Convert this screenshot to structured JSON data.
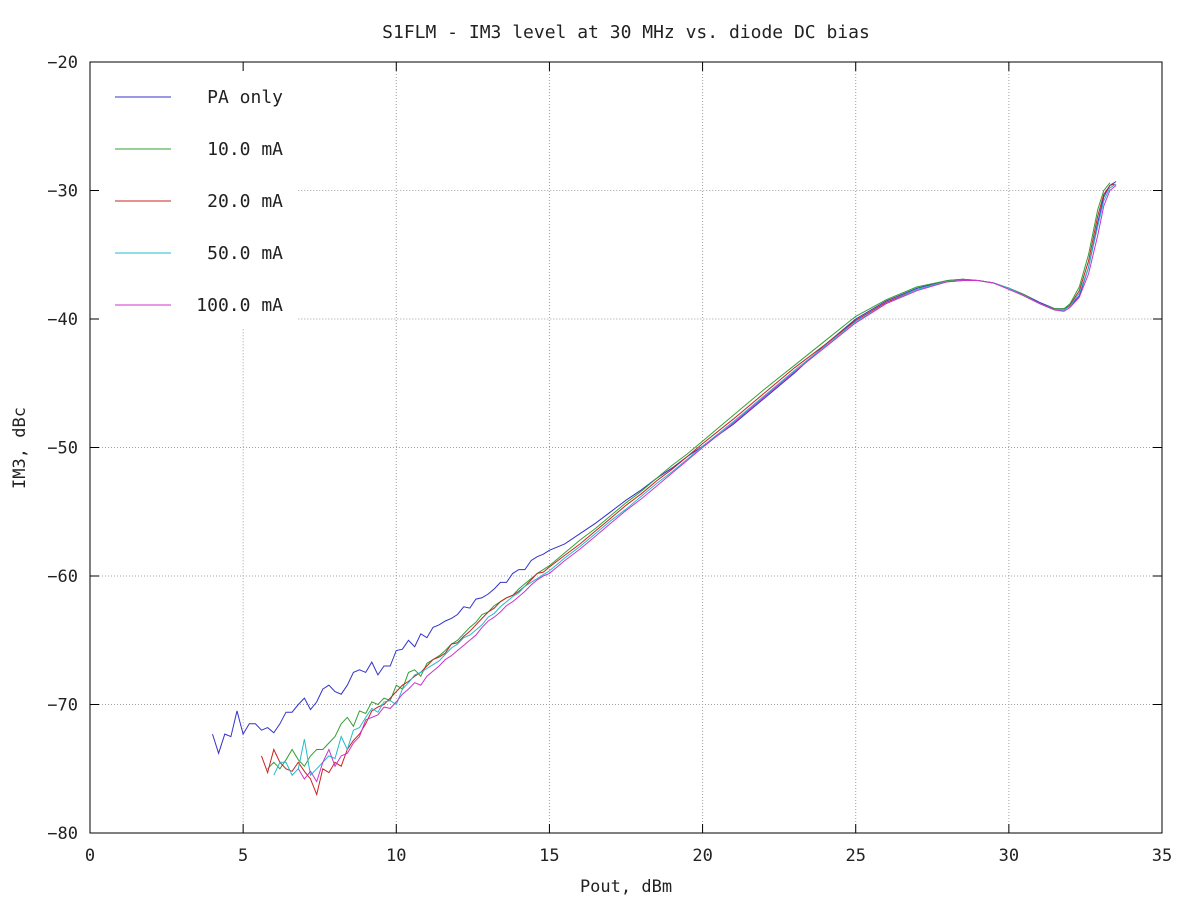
{
  "chart_data": {
    "type": "line",
    "title": "S1FLM - IM3 level at 30 MHz vs. diode DC bias",
    "xlabel": "Pout, dBm",
    "ylabel": "IM3, dBc",
    "xlim": [
      0,
      35
    ],
    "ylim": [
      -80,
      -20
    ],
    "x_ticks": [
      0,
      5,
      10,
      15,
      20,
      25,
      30,
      35
    ],
    "y_ticks": [
      -80,
      -70,
      -60,
      -50,
      -40,
      -30,
      -20
    ],
    "x_tick_labels": [
      "0",
      "5",
      "10",
      "15",
      "20",
      "25",
      "30",
      "35"
    ],
    "y_tick_labels": [
      "−80",
      "−70",
      "−60",
      "−50",
      "−40",
      "−30",
      "−20"
    ],
    "grid": true,
    "legend_position": "top-left",
    "series": [
      {
        "name": "PA only",
        "color": "#3333cc",
        "x": [
          4.0,
          4.2,
          4.4,
          4.6,
          4.8,
          5.0,
          5.2,
          5.4,
          5.6,
          5.8,
          6.0,
          6.2,
          6.4,
          6.6,
          6.8,
          7.0,
          7.2,
          7.4,
          7.6,
          7.8,
          8.0,
          8.2,
          8.4,
          8.6,
          8.8,
          9.0,
          9.2,
          9.4,
          9.6,
          9.8,
          10.0,
          10.2,
          10.4,
          10.6,
          10.8,
          11.0,
          11.2,
          11.4,
          11.6,
          11.8,
          12.0,
          12.2,
          12.4,
          12.6,
          12.8,
          13.0,
          13.2,
          13.4,
          13.6,
          13.8,
          14.0,
          14.2,
          14.4,
          14.6,
          14.8,
          15.0,
          15.5,
          16.0,
          16.5,
          17.0,
          17.5,
          18.0,
          18.5,
          19.0,
          19.5,
          20.0,
          21.0,
          22.0,
          23.0,
          24.0,
          25.0,
          26.0,
          27.0,
          28.0,
          28.5,
          29.0,
          29.5,
          30.0,
          30.5,
          31.0,
          31.5,
          31.8,
          32.0,
          32.3,
          32.6,
          32.9,
          33.1,
          33.3,
          33.5
        ],
        "y": [
          -72.3,
          -73.8,
          -72.3,
          -72.5,
          -70.5,
          -72.3,
          -71.5,
          -71.5,
          -72.0,
          -71.8,
          -72.2,
          -71.5,
          -70.6,
          -70.6,
          -70.0,
          -69.5,
          -70.4,
          -69.8,
          -68.8,
          -68.5,
          -69.0,
          -69.2,
          -68.5,
          -67.5,
          -67.3,
          -67.5,
          -66.7,
          -67.7,
          -67.0,
          -67.0,
          -65.8,
          -65.7,
          -65.0,
          -65.5,
          -64.5,
          -64.8,
          -64.0,
          -63.8,
          -63.5,
          -63.3,
          -63.0,
          -62.4,
          -62.5,
          -61.8,
          -61.7,
          -61.4,
          -61.0,
          -60.5,
          -60.5,
          -59.8,
          -59.5,
          -59.5,
          -58.8,
          -58.5,
          -58.3,
          -58.0,
          -57.5,
          -56.7,
          -55.9,
          -55.0,
          -54.1,
          -53.3,
          -52.4,
          -51.6,
          -50.7,
          -49.9,
          -48.2,
          -46.2,
          -44.2,
          -42.0,
          -40.0,
          -38.6,
          -37.6,
          -37.0,
          -36.9,
          -37.0,
          -37.2,
          -37.6,
          -38.1,
          -38.7,
          -39.2,
          -39.2,
          -39.0,
          -38.2,
          -36.0,
          -32.5,
          -30.5,
          -29.6,
          -29.3
        ]
      },
      {
        "name": "10.0 mA",
        "color": "#33a033",
        "x": [
          5.8,
          6.0,
          6.2,
          6.4,
          6.6,
          6.8,
          7.0,
          7.2,
          7.4,
          7.6,
          7.8,
          8.0,
          8.2,
          8.4,
          8.6,
          8.8,
          9.0,
          9.2,
          9.4,
          9.6,
          9.8,
          10.0,
          10.2,
          10.4,
          10.6,
          10.8,
          11.0,
          11.2,
          11.4,
          11.6,
          11.8,
          12.0,
          12.2,
          12.4,
          12.6,
          12.8,
          13.0,
          13.2,
          13.4,
          13.6,
          13.8,
          14.0,
          14.2,
          14.4,
          14.6,
          14.8,
          15.0,
          15.5,
          16.0,
          16.5,
          17.0,
          17.5,
          18.0,
          18.5,
          19.0,
          19.5,
          20.0,
          21.0,
          22.0,
          23.0,
          24.0,
          25.0,
          26.0,
          27.0,
          28.0,
          28.5,
          29.0,
          29.5,
          30.0,
          30.5,
          31.0,
          31.5,
          31.8,
          32.0,
          32.3,
          32.6,
          32.9,
          33.1,
          33.3
        ],
        "y": [
          -75.0,
          -74.5,
          -75.0,
          -74.3,
          -73.5,
          -74.3,
          -74.8,
          -74.0,
          -73.5,
          -73.5,
          -73.0,
          -72.5,
          -71.5,
          -71.0,
          -71.7,
          -70.5,
          -70.7,
          -69.8,
          -70.0,
          -69.5,
          -69.7,
          -68.5,
          -68.8,
          -67.5,
          -67.3,
          -67.8,
          -66.8,
          -66.5,
          -66.2,
          -65.8,
          -65.3,
          -65.0,
          -64.5,
          -64.0,
          -63.6,
          -63.0,
          -62.8,
          -62.3,
          -62.0,
          -61.7,
          -61.5,
          -61.0,
          -60.6,
          -60.2,
          -59.8,
          -59.5,
          -59.2,
          -58.2,
          -57.2,
          -56.3,
          -55.3,
          -54.3,
          -53.4,
          -52.4,
          -51.4,
          -50.5,
          -49.5,
          -47.5,
          -45.5,
          -43.6,
          -41.7,
          -39.8,
          -38.5,
          -37.5,
          -37.0,
          -36.9,
          -37.0,
          -37.2,
          -37.6,
          -38.1,
          -38.8,
          -39.2,
          -39.2,
          -38.8,
          -37.5,
          -35.0,
          -31.5,
          -30.0,
          -29.4
        ]
      },
      {
        "name": "20.0 mA",
        "color": "#cc2222",
        "x": [
          5.6,
          5.8,
          6.0,
          6.2,
          6.4,
          6.6,
          6.8,
          7.0,
          7.2,
          7.4,
          7.6,
          7.8,
          8.0,
          8.2,
          8.4,
          8.6,
          8.8,
          9.0,
          9.2,
          9.4,
          9.6,
          9.8,
          10.0,
          10.2,
          10.4,
          10.6,
          10.8,
          11.0,
          11.2,
          11.4,
          11.6,
          11.8,
          12.0,
          12.2,
          12.4,
          12.6,
          12.8,
          13.0,
          13.2,
          13.4,
          13.6,
          13.8,
          14.0,
          14.2,
          14.4,
          14.6,
          14.8,
          15.0,
          15.5,
          16.0,
          16.5,
          17.0,
          17.5,
          18.0,
          18.5,
          19.0,
          19.5,
          20.0,
          21.0,
          22.0,
          23.0,
          24.0,
          25.0,
          26.0,
          27.0,
          28.0,
          28.5,
          29.0,
          29.5,
          30.0,
          30.5,
          31.0,
          31.5,
          31.8,
          32.0,
          32.3,
          32.6,
          32.9,
          33.1,
          33.3,
          33.45
        ],
        "y": [
          -74.0,
          -75.3,
          -73.5,
          -74.5,
          -75.0,
          -75.2,
          -74.5,
          -75.2,
          -75.8,
          -77.0,
          -75.0,
          -75.3,
          -74.5,
          -74.8,
          -73.5,
          -72.8,
          -72.3,
          -71.5,
          -70.5,
          -70.2,
          -70.0,
          -69.5,
          -69.0,
          -68.5,
          -68.2,
          -67.8,
          -67.5,
          -67.0,
          -66.5,
          -66.3,
          -66.0,
          -65.3,
          -65.2,
          -64.7,
          -64.3,
          -63.8,
          -63.3,
          -62.8,
          -62.5,
          -62.0,
          -61.7,
          -61.5,
          -61.2,
          -60.8,
          -60.3,
          -59.8,
          -59.7,
          -59.3,
          -58.4,
          -57.5,
          -56.5,
          -55.5,
          -54.5,
          -53.6,
          -52.6,
          -51.7,
          -50.7,
          -49.7,
          -47.8,
          -45.8,
          -43.8,
          -42.0,
          -40.1,
          -38.7,
          -37.7,
          -37.1,
          -37.0,
          -37.0,
          -37.2,
          -37.6,
          -38.2,
          -38.8,
          -39.3,
          -39.3,
          -38.9,
          -37.8,
          -35.5,
          -32.0,
          -30.3,
          -29.6,
          -29.5
        ]
      },
      {
        "name": "50.0 mA",
        "color": "#22bbcc",
        "x": [
          6.0,
          6.2,
          6.4,
          6.6,
          6.8,
          7.0,
          7.2,
          7.4,
          7.6,
          7.8,
          8.0,
          8.2,
          8.4,
          8.6,
          8.8,
          9.0,
          9.2,
          9.4,
          9.6,
          9.8,
          10.0,
          10.2,
          10.4,
          10.6,
          10.8,
          11.0,
          11.2,
          11.4,
          11.6,
          11.8,
          12.0,
          12.2,
          12.4,
          12.6,
          12.8,
          13.0,
          13.2,
          13.4,
          13.6,
          13.8,
          14.0,
          14.2,
          14.4,
          14.6,
          14.8,
          15.0,
          15.5,
          16.0,
          16.5,
          17.0,
          17.5,
          18.0,
          18.5,
          19.0,
          19.5,
          20.0,
          21.0,
          22.0,
          23.0,
          24.0,
          25.0,
          26.0,
          27.0,
          28.0,
          28.5,
          29.0,
          29.5,
          30.0,
          30.5,
          31.0,
          31.5,
          31.8,
          32.0,
          32.3,
          32.6,
          32.9,
          33.1,
          33.3,
          33.5
        ],
        "y": [
          -75.5,
          -74.5,
          -74.5,
          -75.5,
          -75.0,
          -72.7,
          -75.5,
          -75.0,
          -74.5,
          -74.0,
          -74.2,
          -72.5,
          -73.5,
          -72.0,
          -71.8,
          -71.0,
          -70.3,
          -70.6,
          -69.8,
          -69.7,
          -70.0,
          -68.8,
          -68.3,
          -67.7,
          -67.5,
          -67.2,
          -66.9,
          -66.6,
          -66.1,
          -65.6,
          -65.3,
          -64.8,
          -64.6,
          -64.2,
          -63.8,
          -63.2,
          -62.9,
          -62.4,
          -62.0,
          -61.6,
          -61.3,
          -60.8,
          -60.5,
          -60.2,
          -59.9,
          -59.6,
          -58.6,
          -57.7,
          -56.7,
          -55.7,
          -54.8,
          -53.8,
          -52.8,
          -51.9,
          -50.9,
          -49.9,
          -48.0,
          -46.0,
          -44.0,
          -42.1,
          -40.2,
          -38.8,
          -37.7,
          -37.1,
          -37.0,
          -37.0,
          -37.2,
          -37.6,
          -38.2,
          -38.8,
          -39.3,
          -39.3,
          -39.0,
          -38.0,
          -36.0,
          -32.8,
          -30.8,
          -29.8,
          -29.5
        ]
      },
      {
        "name": "100.0 mA",
        "color": "#cc33cc",
        "x": [
          6.8,
          7.0,
          7.2,
          7.4,
          7.6,
          7.8,
          8.0,
          8.2,
          8.4,
          8.6,
          8.8,
          9.0,
          9.2,
          9.4,
          9.6,
          9.8,
          10.0,
          10.2,
          10.4,
          10.6,
          10.8,
          11.0,
          11.2,
          11.4,
          11.6,
          11.8,
          12.0,
          12.2,
          12.4,
          12.6,
          12.8,
          13.0,
          13.2,
          13.4,
          13.6,
          13.8,
          14.0,
          14.2,
          14.4,
          14.6,
          14.8,
          15.0,
          15.5,
          16.0,
          16.5,
          17.0,
          17.5,
          18.0,
          18.5,
          19.0,
          19.5,
          20.0,
          21.0,
          22.0,
          23.0,
          24.0,
          25.0,
          26.0,
          27.0,
          28.0,
          28.5,
          29.0,
          29.5,
          30.0,
          30.5,
          31.0,
          31.5,
          31.8,
          32.0,
          32.3,
          32.6,
          32.9,
          33.1,
          33.3,
          33.5
        ],
        "y": [
          -75.0,
          -75.8,
          -75.2,
          -76.0,
          -74.5,
          -73.5,
          -74.8,
          -74.0,
          -73.8,
          -73.0,
          -72.5,
          -71.2,
          -71.0,
          -70.8,
          -70.2,
          -70.3,
          -69.8,
          -69.2,
          -68.8,
          -68.3,
          -68.5,
          -67.8,
          -67.4,
          -67.0,
          -66.5,
          -66.2,
          -65.8,
          -65.4,
          -65.0,
          -64.6,
          -64.0,
          -63.5,
          -63.2,
          -62.8,
          -62.3,
          -62.0,
          -61.6,
          -61.2,
          -60.7,
          -60.3,
          -60.0,
          -59.8,
          -58.8,
          -57.9,
          -56.9,
          -55.9,
          -54.9,
          -54.0,
          -53.0,
          -52.0,
          -51.0,
          -50.0,
          -48.1,
          -46.1,
          -44.1,
          -42.2,
          -40.3,
          -38.8,
          -37.8,
          -37.1,
          -37.0,
          -37.0,
          -37.2,
          -37.7,
          -38.2,
          -38.8,
          -39.3,
          -39.4,
          -39.1,
          -38.3,
          -36.5,
          -33.5,
          -31.2,
          -30.0,
          -29.6
        ]
      }
    ]
  }
}
